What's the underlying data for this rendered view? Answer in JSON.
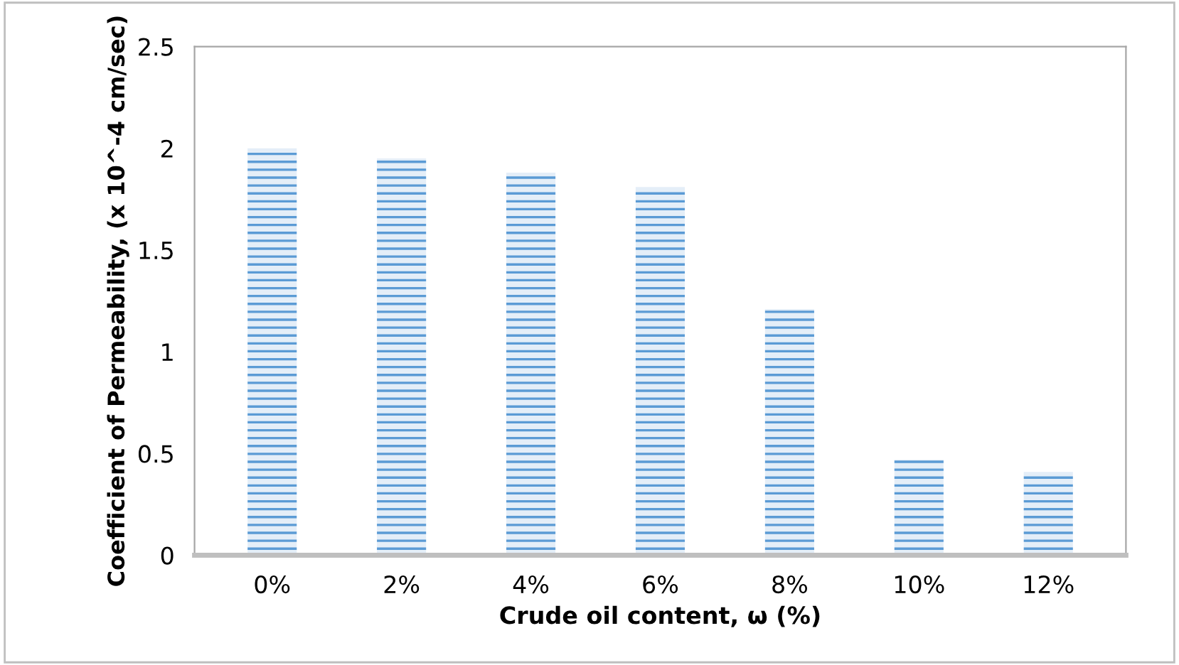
{
  "chart_data": {
    "type": "bar",
    "categories": [
      "0%",
      "2%",
      "4%",
      "6%",
      "8%",
      "10%",
      "12%"
    ],
    "values": [
      2.0,
      1.95,
      1.88,
      1.81,
      1.21,
      0.47,
      0.41
    ],
    "color": "#5b9bd5",
    "xlabel": "Crude oil content, ω (%)",
    "ylabel": "Coefficient of Permeability, (x 10^-4 cm/sec)",
    "ylim": [
      0,
      2.5
    ],
    "yticks": [
      0,
      0.5,
      1,
      1.5,
      2,
      2.5
    ],
    "grid": false,
    "legend": false
  }
}
